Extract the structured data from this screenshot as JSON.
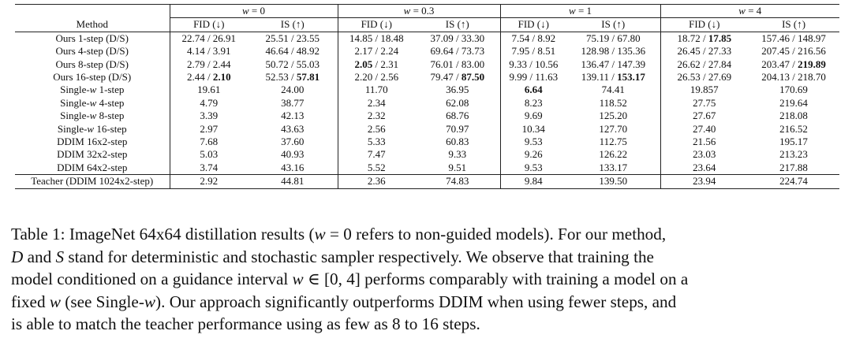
{
  "table": {
    "w_groups": [
      "w = 0",
      "w = 0.3",
      "w = 1",
      "w = 4"
    ],
    "method_header": "Method",
    "metric_headers": [
      "FID (↓)",
      "IS (↑)"
    ],
    "rows": [
      {
        "method": "Ours 1-step (D/S)",
        "cells": [
          "22.74 / 26.91",
          "25.51 / 23.55",
          "14.85 / 18.48",
          "37.09 / 33.30",
          "7.54 / 8.92",
          "75.19 / 67.80",
          "18.72 / 17.85",
          "157.46 / 148.97"
        ]
      },
      {
        "method": "Ours 4-step (D/S)",
        "cells": [
          "4.14 / 3.91",
          "46.64 / 48.92",
          "2.17 / 2.24",
          "69.64 / 73.73",
          "7.95 / 8.51",
          "128.98 / 135.36",
          "26.45 / 27.33",
          "207.45 / 216.56"
        ]
      },
      {
        "method": "Ours 8-step (D/S)",
        "cells": [
          "2.79 / 2.44",
          "50.72 / 55.03",
          "2.05 / 2.31",
          "76.01 / 83.00",
          "9.33 / 10.56",
          "136.47 / 147.39",
          "26.62 / 27.84",
          "203.47 / 219.89"
        ]
      },
      {
        "method": "Ours 16-step (D/S)",
        "cells": [
          "2.44 / 2.10",
          "52.53 / 57.81",
          "2.20 / 2.56",
          "79.47 / 87.50",
          "9.99 / 11.63",
          "139.11 / 153.17",
          "26.53 / 27.69",
          "204.13 / 218.70"
        ]
      },
      {
        "method": "Single-w 1-step",
        "cells": [
          "19.61",
          "24.00",
          "11.70",
          "36.95",
          "6.64",
          "74.41",
          "19.857",
          "170.69"
        ]
      },
      {
        "method": "Single-w 4-step",
        "cells": [
          "4.79",
          "38.77",
          "2.34",
          "62.08",
          "8.23",
          "118.52",
          "27.75",
          "219.64"
        ]
      },
      {
        "method": "Single-w 8-step",
        "cells": [
          "3.39",
          "42.13",
          "2.32",
          "68.76",
          "9.69",
          "125.20",
          "27.67",
          "218.08"
        ]
      },
      {
        "method": "Single-w 16-step",
        "cells": [
          "2.97",
          "43.63",
          "2.56",
          "70.97",
          "10.34",
          "127.70",
          "27.40",
          "216.52"
        ]
      },
      {
        "method": "DDIM 16x2-step",
        "cells": [
          "7.68",
          "37.60",
          "5.33",
          "60.83",
          "9.53",
          "112.75",
          "21.56",
          "195.17"
        ]
      },
      {
        "method": "DDIM 32x2-step",
        "cells": [
          "5.03",
          "40.93",
          "7.47",
          "9.33",
          "9.26",
          "126.22",
          "23.03",
          "213.23"
        ]
      },
      {
        "method": "DDIM 64x2-step",
        "cells": [
          "3.74",
          "43.16",
          "5.52",
          "9.51",
          "9.53",
          "133.17",
          "23.64",
          "217.88"
        ]
      },
      {
        "method": "Teacher (DDIM 1024x2-step)",
        "cells": [
          "2.92",
          "44.81",
          "2.36",
          "74.83",
          "9.84",
          "139.50",
          "23.94",
          "224.74"
        ]
      }
    ]
  },
  "caption": {
    "lines": [
      "Table 1: ImageNet 64x64 distillation results (w = 0 refers to non-guided models). For our method,",
      "D and S stand for deterministic and stochastic sampler respectively. We observe that training the",
      "model conditioned on a guidance interval w ∈ [0, 4] performs comparably with training a model on a",
      "fixed w (see Single-w). Our approach significantly outperforms DDIM when using fewer steps, and",
      "is able to match the teacher performance using as few as 8 to 16 steps."
    ]
  }
}
